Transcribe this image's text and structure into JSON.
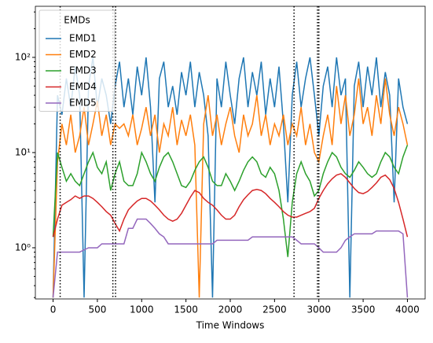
{
  "chart_data": {
    "type": "line",
    "xlabel": "Time Windows",
    "legend_title": "EMDs",
    "legend": "upper left",
    "log_y": true,
    "xlim": [
      -200,
      4200
    ],
    "ylim": [
      0.29,
      344
    ],
    "xticks": [
      0,
      500,
      1000,
      1500,
      2000,
      2500,
      3000,
      3500,
      4000
    ],
    "yticks": [
      {
        "value": 1,
        "label": "10⁰"
      },
      {
        "value": 10,
        "label": "10¹"
      },
      {
        "value": 100,
        "label": "10²"
      }
    ],
    "yminorticks": [
      0.3,
      0.4,
      0.5,
      0.6,
      0.7,
      0.8,
      0.9,
      2,
      3,
      4,
      5,
      6,
      7,
      8,
      9,
      20,
      30,
      40,
      50,
      60,
      70,
      80,
      90,
      200,
      300
    ],
    "vlines": [
      80,
      675,
      705,
      2720,
      2985,
      3000
    ],
    "vline_color": "#000000",
    "x": [
      0,
      50,
      100,
      150,
      200,
      250,
      300,
      350,
      400,
      450,
      500,
      550,
      600,
      650,
      700,
      750,
      800,
      850,
      900,
      950,
      1000,
      1050,
      1100,
      1150,
      1200,
      1250,
      1300,
      1350,
      1400,
      1450,
      1500,
      1550,
      1600,
      1650,
      1700,
      1750,
      1800,
      1850,
      1900,
      1950,
      2000,
      2050,
      2100,
      2150,
      2200,
      2250,
      2300,
      2350,
      2400,
      2450,
      2500,
      2550,
      2600,
      2650,
      2700,
      2750,
      2800,
      2850,
      2900,
      2950,
      3000,
      3050,
      3100,
      3150,
      3200,
      3250,
      3300,
      3350,
      3400,
      3450,
      3500,
      3550,
      3600,
      3650,
      3700,
      3750,
      3800,
      3850,
      3900,
      3950,
      4000
    ],
    "series": [
      {
        "name": "EMD1",
        "color": "#1f77b4",
        "values": [
          0.3,
          40,
          25,
          60,
          30,
          80,
          40,
          0.3,
          50,
          100,
          30,
          60,
          40,
          20,
          50,
          90,
          30,
          60,
          25,
          80,
          40,
          100,
          30,
          3,
          60,
          90,
          30,
          50,
          25,
          70,
          40,
          90,
          30,
          70,
          40,
          15,
          0.3,
          60,
          30,
          90,
          40,
          20,
          60,
          100,
          30,
          70,
          40,
          90,
          25,
          60,
          30,
          80,
          20,
          3,
          40,
          90,
          30,
          60,
          100,
          40,
          15,
          50,
          80,
          30,
          100,
          40,
          60,
          0.3,
          50,
          90,
          30,
          80,
          40,
          100,
          30,
          70,
          40,
          3,
          60,
          30,
          20
        ]
      },
      {
        "name": "EMD2",
        "color": "#ff7f0e",
        "values": [
          0.3,
          8,
          20,
          12,
          25,
          10,
          15,
          30,
          12,
          20,
          35,
          15,
          25,
          12,
          20,
          18,
          20,
          15,
          25,
          12,
          18,
          30,
          15,
          25,
          10,
          20,
          15,
          30,
          12,
          22,
          15,
          25,
          12,
          0.3,
          20,
          40,
          15,
          25,
          12,
          20,
          30,
          15,
          10,
          25,
          15,
          20,
          40,
          15,
          25,
          12,
          20,
          15,
          25,
          12,
          20,
          15,
          30,
          12,
          20,
          10,
          8,
          15,
          25,
          12,
          50,
          20,
          40,
          15,
          25,
          60,
          20,
          30,
          15,
          40,
          20,
          60,
          25,
          15,
          30,
          20,
          12
        ]
      },
      {
        "name": "EMD3",
        "color": "#2ca02c",
        "values": [
          1.3,
          10,
          7,
          5,
          6,
          5,
          4.5,
          6,
          8,
          10,
          7,
          6,
          8,
          4,
          6,
          8,
          5,
          4.5,
          4.5,
          6,
          10,
          8,
          6,
          5,
          7,
          9,
          10,
          8,
          6,
          4.5,
          4.3,
          5,
          6.5,
          8,
          9,
          7,
          5,
          4.5,
          4.5,
          6,
          5,
          4,
          5,
          6.5,
          8,
          9,
          8,
          6,
          5.5,
          7,
          6,
          4,
          2,
          0.8,
          3,
          6,
          8,
          6,
          5,
          3.5,
          4,
          6,
          8,
          10,
          9,
          7,
          6,
          5.5,
          6.5,
          8,
          7,
          6,
          5.5,
          6,
          8,
          10,
          9,
          7,
          6,
          9,
          12
        ]
      },
      {
        "name": "EMD4",
        "color": "#d62728",
        "values": [
          1.3,
          2,
          2.8,
          3,
          3.2,
          3.5,
          3.3,
          3.5,
          3.5,
          3.3,
          3,
          2.7,
          2.4,
          2.2,
          1.8,
          1.5,
          2,
          2.5,
          2.8,
          3.1,
          3.3,
          3.3,
          3.1,
          2.8,
          2.5,
          2.2,
          2,
          1.9,
          2,
          2.3,
          2.8,
          3.4,
          4,
          3.8,
          3.3,
          3,
          2.8,
          2.5,
          2.2,
          2,
          2,
          2.2,
          2.7,
          3.2,
          3.6,
          4,
          4.1,
          4,
          3.7,
          3.3,
          3,
          2.7,
          2.4,
          2.2,
          2.1,
          2.1,
          2.2,
          2.3,
          2.4,
          2.6,
          3.3,
          4,
          4.7,
          5.3,
          5.8,
          6,
          5.5,
          4.8,
          4.2,
          3.8,
          3.7,
          3.9,
          4.3,
          4.8,
          5.5,
          5.8,
          5.2,
          4.2,
          3,
          2,
          1.3
        ]
      },
      {
        "name": "EMD5",
        "color": "#9467bd",
        "values": [
          0.3,
          0.9,
          0.9,
          0.9,
          0.9,
          0.9,
          0.9,
          0.95,
          1,
          1,
          1,
          1.1,
          1.1,
          1.1,
          1.1,
          1.1,
          1.1,
          1.6,
          1.6,
          2,
          2,
          2,
          1.8,
          1.6,
          1.4,
          1.3,
          1.1,
          1.1,
          1.1,
          1.1,
          1.1,
          1.1,
          1.1,
          1.1,
          1.1,
          1.1,
          1.1,
          1.2,
          1.2,
          1.2,
          1.2,
          1.2,
          1.2,
          1.2,
          1.2,
          1.3,
          1.3,
          1.3,
          1.3,
          1.3,
          1.3,
          1.3,
          1.3,
          1.3,
          1.3,
          1.2,
          1.1,
          1.1,
          1.1,
          1.1,
          1,
          0.9,
          0.9,
          0.9,
          0.9,
          1,
          1.2,
          1.3,
          1.4,
          1.4,
          1.4,
          1.4,
          1.4,
          1.5,
          1.5,
          1.5,
          1.5,
          1.5,
          1.5,
          1.4,
          0.3
        ]
      }
    ]
  }
}
